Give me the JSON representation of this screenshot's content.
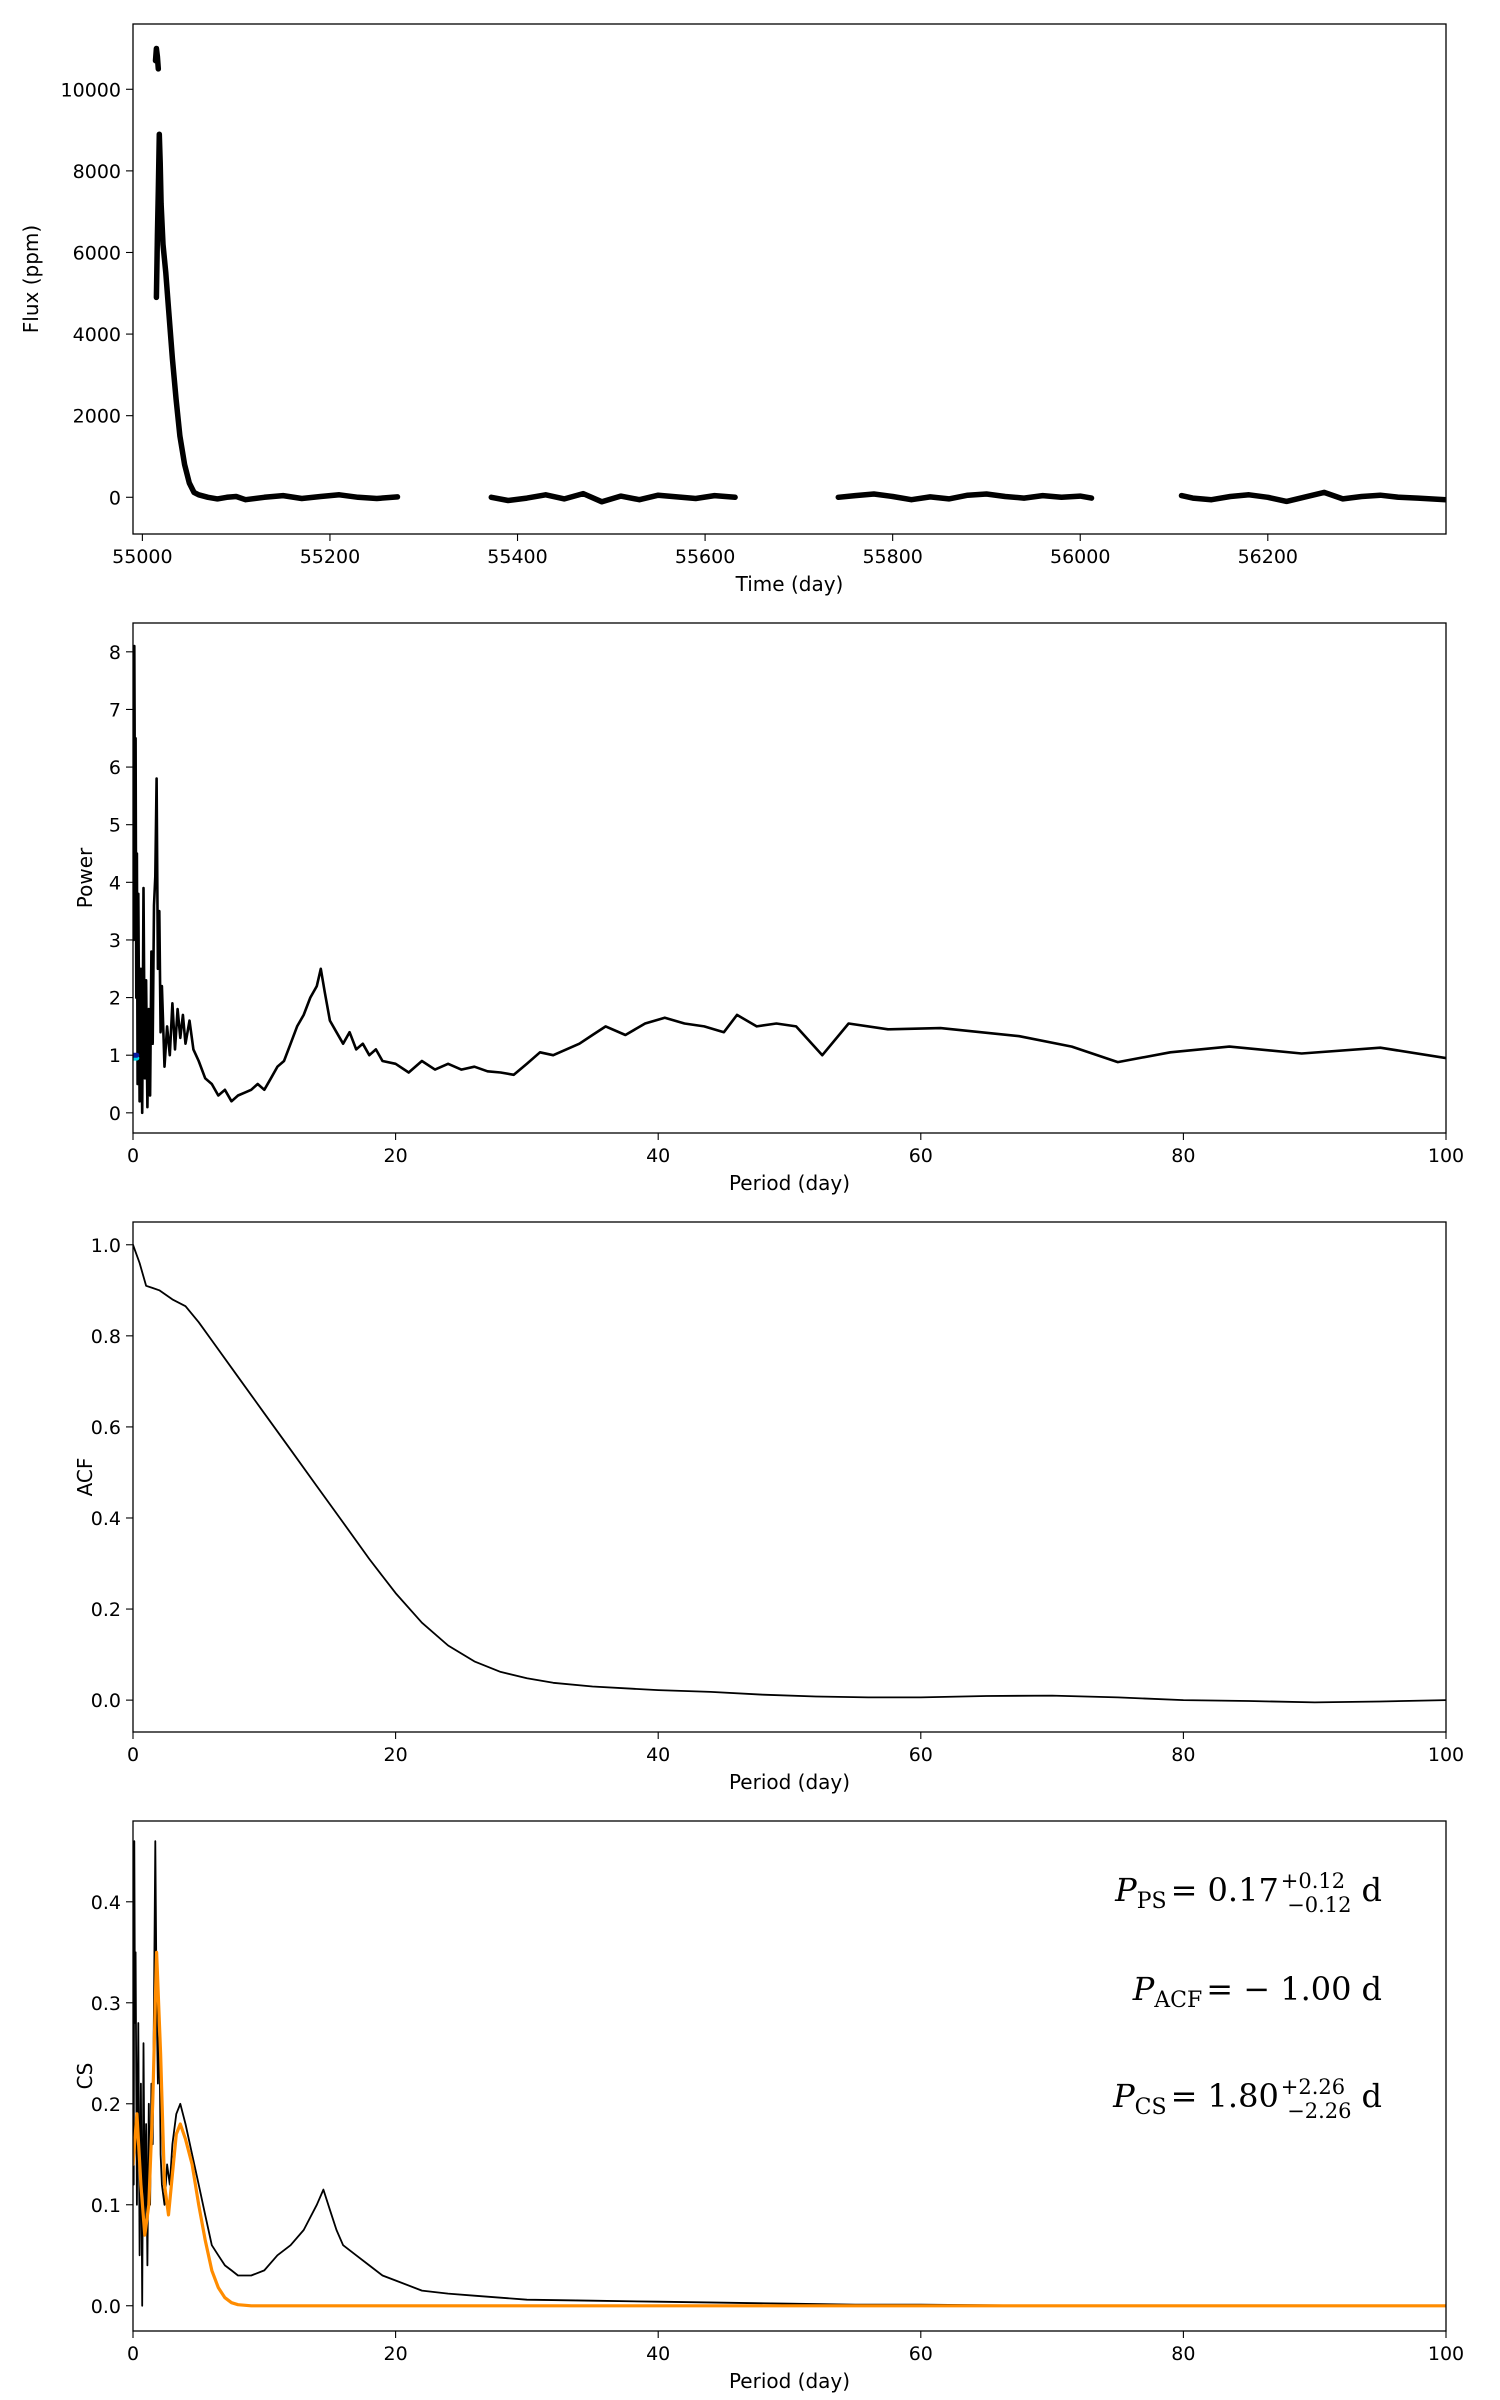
{
  "chart_data": [
    {
      "type": "scatter",
      "xlabel": "Time (day)",
      "ylabel": "Flux (ppm)",
      "xlim": [
        54990,
        56390
      ],
      "ylim": [
        -900,
        11600
      ],
      "xticks": [
        55000,
        55200,
        55400,
        55600,
        55800,
        56000,
        56200
      ],
      "yticks": [
        0,
        2000,
        4000,
        6000,
        8000,
        10000
      ],
      "series": [
        {
          "color": "#000000",
          "x": [
            55015,
            55016,
            55017,
            55018,
            55019,
            55020,
            55022,
            55025,
            55028,
            55032,
            55036,
            55040,
            55045,
            55050,
            55055,
            55060,
            55070,
            55080,
            55090,
            55100,
            55110,
            55130,
            55150,
            55170,
            55190,
            55210,
            55230,
            55250,
            55272
          ],
          "y": [
            4900,
            6400,
            7500,
            8900,
            8200,
            7200,
            6200,
            5500,
            4600,
            3400,
            2400,
            1500,
            800,
            350,
            120,
            60,
            0,
            -40,
            0,
            20,
            -60,
            0,
            40,
            -30,
            20,
            60,
            0,
            -30,
            10
          ]
        },
        {
          "color": "#000000",
          "x": [
            55014,
            55015,
            55016,
            55017
          ],
          "y": [
            10700,
            11000,
            10800,
            10500
          ]
        },
        {
          "color": "#000000",
          "x": [
            55372,
            55390,
            55410,
            55430,
            55450,
            55470,
            55490,
            55510,
            55530,
            55550,
            55570,
            55590,
            55610,
            55632
          ],
          "y": [
            0,
            -80,
            -20,
            60,
            -40,
            90,
            -110,
            30,
            -60,
            50,
            10,
            -30,
            40,
            0
          ]
        },
        {
          "color": "#000000",
          "x": [
            55742,
            55760,
            55780,
            55800,
            55820,
            55840,
            55860,
            55880,
            55900,
            55920,
            55940,
            55960,
            55980,
            56000,
            56012
          ],
          "y": [
            0,
            40,
            80,
            20,
            -60,
            10,
            -40,
            50,
            80,
            20,
            -20,
            40,
            0,
            30,
            -20
          ]
        },
        {
          "color": "#000000",
          "x": [
            56108,
            56120,
            56140,
            56160,
            56180,
            56200,
            56220,
            56240,
            56260,
            56280,
            56300,
            56320,
            56340,
            56360,
            56390
          ],
          "y": [
            40,
            -20,
            -60,
            20,
            60,
            0,
            -100,
            10,
            120,
            -40,
            20,
            50,
            0,
            -20,
            -60
          ]
        }
      ]
    },
    {
      "type": "line",
      "xlabel": "Period (day)",
      "ylabel": "Power",
      "xlim": [
        0,
        100
      ],
      "ylim": [
        -0.35,
        8.5
      ],
      "xticks": [
        0,
        20,
        40,
        60,
        80,
        100
      ],
      "yticks": [
        0,
        1,
        2,
        3,
        4,
        5,
        6,
        7,
        8
      ],
      "series": [
        {
          "color": "#000000",
          "x": [
            0.05,
            0.1,
            0.15,
            0.2,
            0.25,
            0.3,
            0.35,
            0.4,
            0.5,
            0.6,
            0.7,
            0.8,
            0.9,
            1.0,
            1.1,
            1.2,
            1.3,
            1.4,
            1.5,
            1.6,
            1.7,
            1.8,
            1.9,
            2.0,
            2.1,
            2.2,
            2.4,
            2.6,
            2.8,
            3.0,
            3.2,
            3.4,
            3.6,
            3.8,
            4.0,
            4.3,
            4.6,
            5.0,
            5.5,
            6.0,
            6.5,
            7.0,
            7.5,
            8.0,
            8.5,
            9.0,
            9.5,
            10.0,
            10.5,
            11.0,
            11.5,
            12.0,
            12.5,
            13.0,
            13.5,
            14.0,
            14.3,
            14.6,
            15.0,
            15.5,
            16.0,
            16.5,
            17.0,
            17.5,
            18.0,
            18.5,
            19.0,
            20.0,
            21.0,
            22.0,
            23.0,
            24.0,
            25.0,
            26.0,
            27.0,
            28.0,
            29.0,
            30.0,
            31.0,
            32.0,
            33.0,
            34.0,
            35.0,
            36.0,
            37.5,
            39.0,
            40.5,
            42.0,
            43.5,
            45.0,
            46.0,
            47.5,
            49.0,
            50.5,
            52.5,
            54.5,
            57.5,
            61.5,
            67.5,
            71.5,
            75.0,
            79.0,
            83.5,
            89.0,
            95.0,
            100.0
          ],
          "y": [
            3.0,
            8.1,
            5.0,
            6.5,
            2.0,
            4.5,
            0.5,
            3.8,
            0.2,
            2.5,
            0.0,
            3.9,
            0.6,
            2.3,
            0.1,
            1.8,
            0.3,
            2.8,
            1.2,
            3.6,
            4.1,
            5.8,
            2.5,
            3.5,
            1.4,
            2.2,
            0.8,
            1.5,
            1.0,
            1.9,
            1.1,
            1.8,
            1.3,
            1.7,
            1.2,
            1.6,
            1.1,
            0.9,
            0.6,
            0.5,
            0.3,
            0.4,
            0.2,
            0.3,
            0.35,
            0.4,
            0.5,
            0.4,
            0.6,
            0.8,
            0.9,
            1.2,
            1.5,
            1.7,
            2.0,
            2.2,
            2.5,
            2.1,
            1.6,
            1.4,
            1.2,
            1.4,
            1.1,
            1.2,
            1.0,
            1.1,
            0.9,
            0.85,
            0.7,
            0.9,
            0.75,
            0.85,
            0.75,
            0.8,
            0.72,
            0.7,
            0.66,
            0.85,
            1.05,
            1.0,
            1.1,
            1.2,
            1.35,
            1.5,
            1.35,
            1.55,
            1.65,
            1.55,
            1.5,
            1.4,
            1.7,
            1.5,
            1.55,
            1.5,
            1.0,
            1.55,
            1.45,
            1.47,
            1.33,
            1.15,
            0.88,
            1.05,
            1.15,
            1.03,
            1.13,
            0.95
          ]
        },
        {
          "color": "#00d4e6",
          "x": [
            0.05,
            0.29
          ],
          "y": [
            0.95,
            0.95
          ]
        },
        {
          "color": "#0a1aa0",
          "x": [
            0.05,
            0.29
          ],
          "y": [
            1.0,
            1.0
          ]
        }
      ]
    },
    {
      "type": "line",
      "xlabel": "Period (day)",
      "ylabel": "ACF",
      "xlim": [
        0,
        100
      ],
      "ylim": [
        -0.07,
        1.05
      ],
      "xticks": [
        0,
        20,
        40,
        60,
        80,
        100
      ],
      "yticks": [
        0.0,
        0.2,
        0.4,
        0.6,
        0.8,
        1.0
      ],
      "series": [
        {
          "color": "#000000",
          "x": [
            0,
            0.5,
            1,
            1.5,
            2,
            3,
            4,
            5,
            6,
            8,
            10,
            12,
            14,
            16,
            18,
            20,
            22,
            24,
            26,
            28,
            30,
            32,
            35,
            38,
            40,
            44,
            48,
            52,
            56,
            60,
            65,
            70,
            75,
            80,
            85,
            90,
            95,
            100
          ],
          "y": [
            1.0,
            0.96,
            0.91,
            0.905,
            0.9,
            0.88,
            0.865,
            0.83,
            0.79,
            0.71,
            0.63,
            0.55,
            0.47,
            0.39,
            0.31,
            0.235,
            0.17,
            0.12,
            0.085,
            0.062,
            0.048,
            0.038,
            0.03,
            0.025,
            0.022,
            0.018,
            0.012,
            0.008,
            0.006,
            0.006,
            0.009,
            0.01,
            0.006,
            0.0,
            -0.002,
            -0.005,
            -0.003,
            0.0
          ]
        }
      ]
    },
    {
      "type": "line",
      "xlabel": "Period (day)",
      "ylabel": "CS",
      "xlim": [
        0,
        100
      ],
      "ylim": [
        -0.025,
        0.48
      ],
      "xticks": [
        0,
        20,
        40,
        60,
        80,
        100
      ],
      "yticks": [
        0.0,
        0.1,
        0.2,
        0.3,
        0.4
      ],
      "series": [
        {
          "color": "#000000",
          "x": [
            0.05,
            0.1,
            0.15,
            0.2,
            0.3,
            0.4,
            0.5,
            0.6,
            0.7,
            0.8,
            0.9,
            1.0,
            1.1,
            1.2,
            1.3,
            1.4,
            1.5,
            1.6,
            1.7,
            1.8,
            1.9,
            2.0,
            2.1,
            2.2,
            2.4,
            2.6,
            2.8,
            3.0,
            3.3,
            3.6,
            4.0,
            4.5,
            5.0,
            5.5,
            6.0,
            6.5,
            7.0,
            7.5,
            8.0,
            9.0,
            10.0,
            11.0,
            12.0,
            13.0,
            14.0,
            14.5,
            15.0,
            15.5,
            16.0,
            17.0,
            18.0,
            19.0,
            20.0,
            22.0,
            24.0,
            26.0,
            28.0,
            30.0,
            35.0,
            40.0,
            45.0,
            50.0,
            55.0,
            60.0,
            70.0,
            80.0,
            90.0,
            100.0
          ],
          "y": [
            0.12,
            0.46,
            0.28,
            0.35,
            0.1,
            0.28,
            0.05,
            0.22,
            0.0,
            0.26,
            0.08,
            0.18,
            0.04,
            0.2,
            0.1,
            0.22,
            0.16,
            0.3,
            0.46,
            0.3,
            0.22,
            0.28,
            0.15,
            0.12,
            0.1,
            0.14,
            0.12,
            0.16,
            0.19,
            0.2,
            0.18,
            0.15,
            0.12,
            0.09,
            0.06,
            0.05,
            0.04,
            0.035,
            0.03,
            0.03,
            0.035,
            0.05,
            0.06,
            0.075,
            0.1,
            0.115,
            0.095,
            0.075,
            0.06,
            0.05,
            0.04,
            0.03,
            0.025,
            0.015,
            0.012,
            0.01,
            0.008,
            0.006,
            0.005,
            0.004,
            0.003,
            0.002,
            0.001,
            0.001,
            0.0,
            0.0,
            0.0,
            0.0
          ]
        },
        {
          "color": "#ff8c00",
          "x": [
            0,
            0.3,
            0.6,
            0.9,
            1.2,
            1.5,
            1.8,
            2.1,
            2.4,
            2.7,
            3.0,
            3.3,
            3.6,
            4.0,
            4.5,
            5.0,
            5.5,
            6.0,
            6.5,
            7.0,
            7.5,
            8.0,
            9.0,
            10.0,
            12.0,
            15.0,
            20.0,
            40.0,
            60.0,
            80.0,
            100.0
          ],
          "y": [
            0.14,
            0.19,
            0.12,
            0.07,
            0.1,
            0.2,
            0.35,
            0.25,
            0.12,
            0.09,
            0.13,
            0.17,
            0.18,
            0.165,
            0.14,
            0.1,
            0.065,
            0.035,
            0.018,
            0.008,
            0.003,
            0.001,
            0.0,
            0.0,
            0.0,
            0.0,
            0.0,
            0.0,
            0.0,
            0.0,
            0.0
          ]
        }
      ]
    }
  ],
  "annotations": {
    "pps": {
      "sym": "P",
      "sub": "PS",
      "val": "= 0.17",
      "sup": "+0.12",
      "sub2": "−0.12",
      "unit": "d"
    },
    "pacf": {
      "sym": "P",
      "sub": "ACF",
      "val": "= − 1.00",
      "unit": "d"
    },
    "pcs": {
      "sym": "P",
      "sub": "CS",
      "val": "= 1.80",
      "sup": "+2.26",
      "sub2": "−2.26",
      "unit": "d"
    }
  }
}
